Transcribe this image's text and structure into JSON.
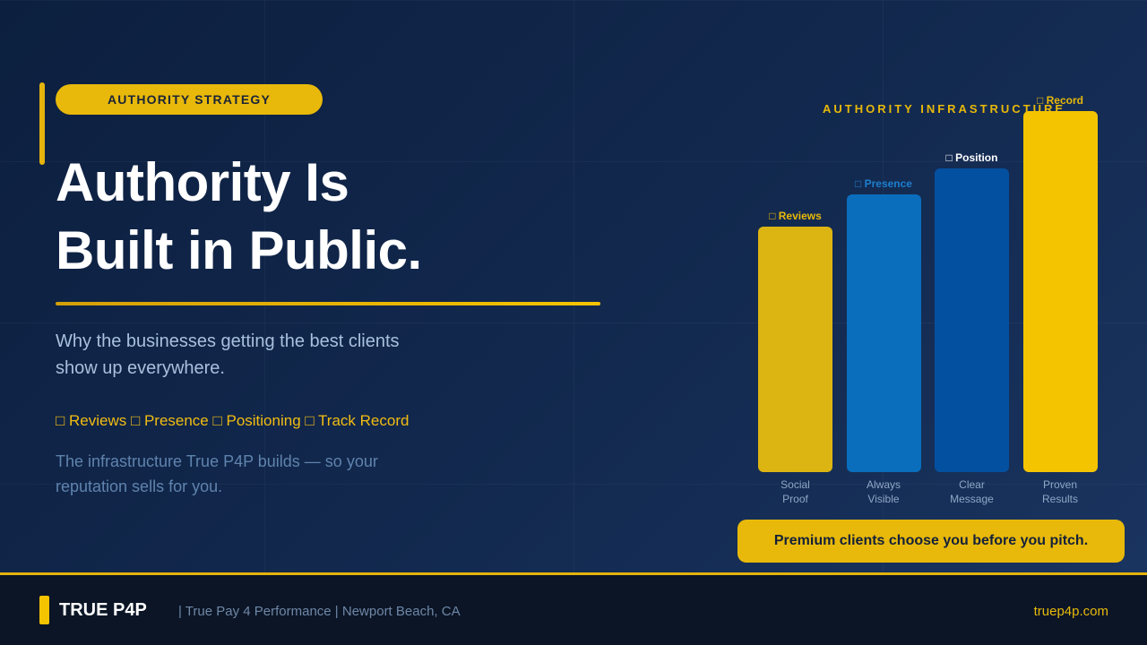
{
  "badge": "AUTHORITY STRATEGY",
  "headline": {
    "line1": "Authority Is",
    "line2": "Built in Public."
  },
  "subheadline": "Why the businesses getting the best clients show up everywhere.",
  "pillars_text": "□ Reviews □ Presence □ Positioning □ Track Record",
  "description": "The infrastructure True P4P builds — so your reputation sells for you.",
  "callout": "Premium clients choose you before you pitch.",
  "footer": {
    "brand": "TRUE P4P",
    "tagline": "| True Pay 4 Performance | Newport Beach, CA",
    "url": "truep4p.com"
  },
  "colors": {
    "accent": "#e8b90a",
    "bar_reviews": "#ddb512",
    "bar_presence": "#0a6ebd",
    "bar_position": "#0450a0",
    "bar_record": "#f5c400"
  },
  "chart_data": {
    "type": "bar",
    "title": "AUTHORITY INFRASTRUCTURE",
    "categories": [
      "Social Proof",
      "Always Visible",
      "Clear Message",
      "Proven Results"
    ],
    "category_lines": [
      [
        "Social",
        "Proof"
      ],
      [
        "Always",
        "Visible"
      ],
      [
        "Clear",
        "Message"
      ],
      [
        "Proven",
        "Results"
      ]
    ],
    "bar_labels": [
      "□ Reviews",
      "□ Presence",
      "□ Position",
      "□ Record"
    ],
    "values": [
      68,
      77,
      84,
      100
    ],
    "ylim": [
      0,
      100
    ],
    "grid": false,
    "legend": "none"
  }
}
